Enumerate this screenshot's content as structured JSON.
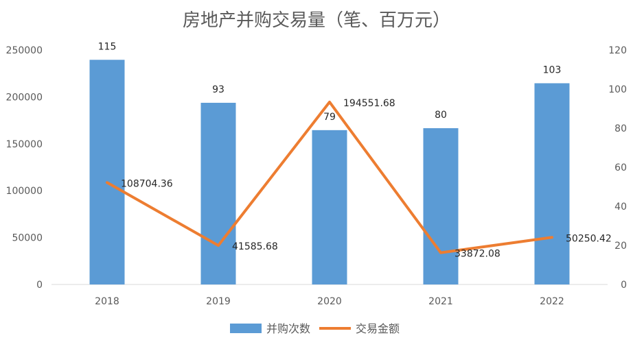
{
  "chart_data": {
    "type": "bar",
    "title": "房地产并购交易量（笔、百万元）",
    "categories": [
      "2018",
      "2019",
      "2020",
      "2021",
      "2022"
    ],
    "series": [
      {
        "name": "并购次数",
        "type": "bar",
        "axis": "right",
        "color": "#5B9BD5",
        "values": [
          115,
          93,
          79,
          80,
          103
        ],
        "labels": [
          "115",
          "93",
          "79",
          "80",
          "103"
        ]
      },
      {
        "name": "交易金额",
        "type": "line",
        "axis": "left",
        "color": "#ED7D31",
        "values": [
          108704.36,
          41585.68,
          194551.68,
          33872.08,
          50250.42
        ],
        "labels": [
          "108704.36",
          "41585.68",
          "194551.68",
          "33872.08",
          "50250.42"
        ]
      }
    ],
    "y_left": {
      "min": 0,
      "max": 250000,
      "ticks": [
        "0",
        "50000",
        "100000",
        "150000",
        "200000",
        "250000"
      ]
    },
    "y_right": {
      "min": 0,
      "max": 120,
      "ticks": [
        "0",
        "20",
        "40",
        "60",
        "80",
        "100",
        "120"
      ]
    },
    "legend_position": "bottom",
    "grid": false
  }
}
